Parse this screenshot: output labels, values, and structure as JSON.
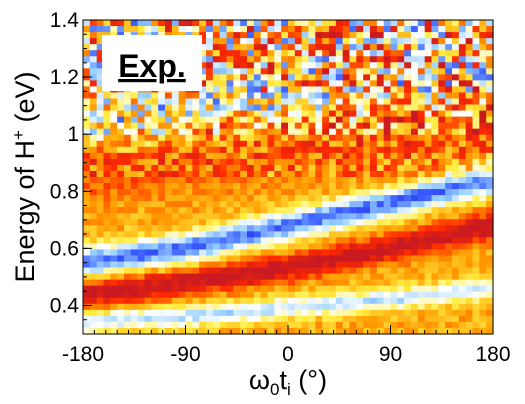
{
  "chart_data": {
    "type": "heatmap",
    "title": "",
    "annotation": "Exp.",
    "xlabel": {
      "base": "ω",
      "sub1": "0",
      "mid": "t",
      "sub2": "i",
      "unit": " (°)"
    },
    "ylabel": {
      "main": "Energy of H",
      "sup": "+",
      "unit": " (eV)"
    },
    "xlim": [
      -180,
      180
    ],
    "ylim": [
      0.3,
      1.4
    ],
    "x_ticks": [
      {
        "value": -180,
        "label": "-180"
      },
      {
        "value": -90,
        "label": "-90"
      },
      {
        "value": 0,
        "label": "0"
      },
      {
        "value": 90,
        "label": "90"
      },
      {
        "value": 180,
        "label": "180"
      }
    ],
    "y_ticks": [
      {
        "value": 0.4,
        "label": "0.4"
      },
      {
        "value": 0.6,
        "label": "0.6"
      },
      {
        "value": 0.8,
        "label": "0.8"
      },
      {
        "value": 1.0,
        "label": "1"
      },
      {
        "value": 1.2,
        "label": "1.2"
      },
      {
        "value": 1.4,
        "label": "1.4"
      }
    ],
    "colormap": [
      "#0a0a2a",
      "#1a1ad0",
      "#3a5cff",
      "#9ad2ff",
      "#ffffff",
      "#ffee44",
      "#ff9a00",
      "#ff2a00",
      "#c81a20"
    ],
    "features": [
      {
        "name": "high-intensity ridge",
        "x": [
          -180,
          -90,
          0,
          90,
          180
        ],
        "y": [
          0.44,
          0.48,
          0.53,
          0.6,
          0.68
        ]
      },
      {
        "name": "low-intensity valley",
        "x": [
          -180,
          -90,
          0,
          90,
          180
        ],
        "y": [
          0.55,
          0.6,
          0.68,
          0.76,
          0.84
        ]
      },
      {
        "name": "lower valley",
        "x": [
          -180,
          -90,
          0,
          90,
          180
        ],
        "y": [
          0.34,
          0.36,
          0.39,
          0.42,
          0.46
        ]
      }
    ],
    "grid": false,
    "legend": "none"
  }
}
